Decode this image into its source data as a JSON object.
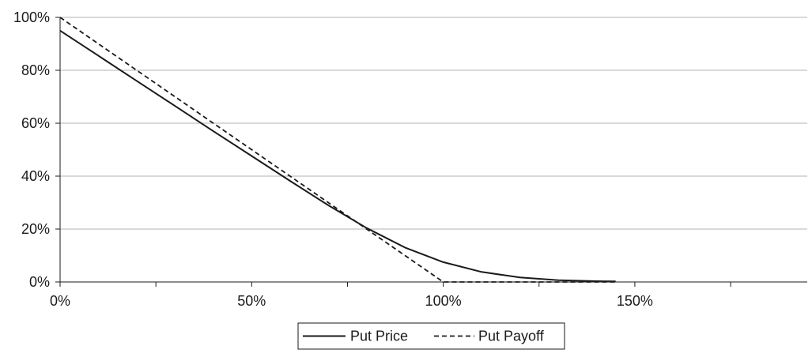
{
  "chart_data": {
    "type": "line",
    "title": "",
    "xlabel": "",
    "ylabel": "",
    "xlim": [
      0,
      195
    ],
    "ylim": [
      0,
      100
    ],
    "x_ticks": [
      0,
      50,
      100,
      150
    ],
    "x_minor_ticks": [
      25,
      75,
      125,
      175
    ],
    "x_tick_labels": [
      "0%",
      "50%",
      "100%",
      "150%"
    ],
    "y_ticks": [
      0,
      20,
      40,
      60,
      80,
      100
    ],
    "y_tick_labels": [
      "0%",
      "20%",
      "40%",
      "60%",
      "80%",
      "100%"
    ],
    "grid": "horizontal",
    "legend_position": "bottom-center",
    "x": [
      0,
      10,
      20,
      30,
      40,
      50,
      60,
      70,
      80,
      90,
      100,
      110,
      120,
      130,
      140,
      145
    ],
    "series": [
      {
        "name": "Put Price",
        "style": "solid",
        "color": "#1a1a1a",
        "values": [
          95,
          85.5,
          76,
          66.5,
          57,
          47.6,
          38.2,
          29,
          20.4,
          13,
          7.5,
          3.8,
          1.7,
          0.7,
          0.3,
          0.2
        ]
      },
      {
        "name": "Put Payoff",
        "style": "dashed",
        "color": "#1a1a1a",
        "values": [
          100,
          90,
          80,
          70,
          60,
          50,
          40,
          30,
          20,
          10,
          0,
          0,
          0,
          0,
          0,
          0
        ]
      }
    ]
  }
}
